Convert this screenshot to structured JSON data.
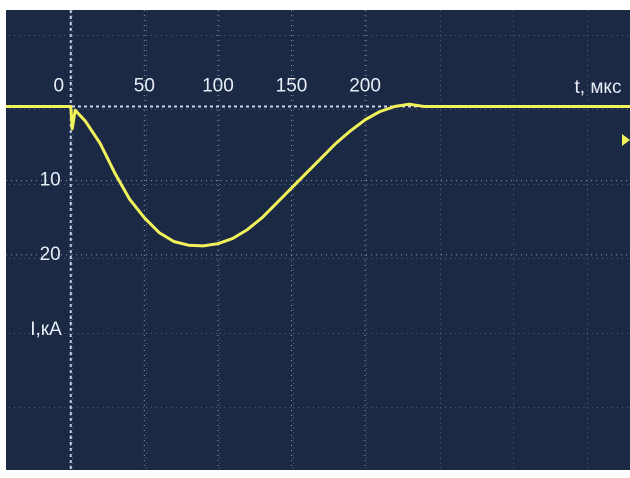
{
  "chart_data": {
    "type": "line",
    "x_label": "t, мкс",
    "y_label": "I,кА",
    "x": [
      -44,
      0,
      1,
      3,
      10,
      20,
      30,
      40,
      50,
      60,
      70,
      80,
      90,
      100,
      110,
      120,
      130,
      140,
      150,
      160,
      170,
      180,
      190,
      200,
      210,
      220,
      230,
      240,
      300,
      380
    ],
    "series": [
      {
        "color": "#f2f25a",
        "values": [
          0,
          0,
          3,
          0.5,
          2,
          5,
          9,
          12.5,
          15,
          17,
          18.2,
          18.7,
          18.8,
          18.5,
          17.8,
          16.6,
          15,
          13,
          11,
          9,
          7,
          5,
          3.3,
          1.8,
          0.7,
          0,
          -0.3,
          0,
          0,
          0
        ]
      }
    ],
    "xlim": [
      -44,
      380
    ],
    "ylim": [
      49,
      -13
    ],
    "xticks": [
      0,
      50,
      100,
      150,
      200
    ],
    "yticks": [
      10,
      20
    ],
    "grid": true
  }
}
